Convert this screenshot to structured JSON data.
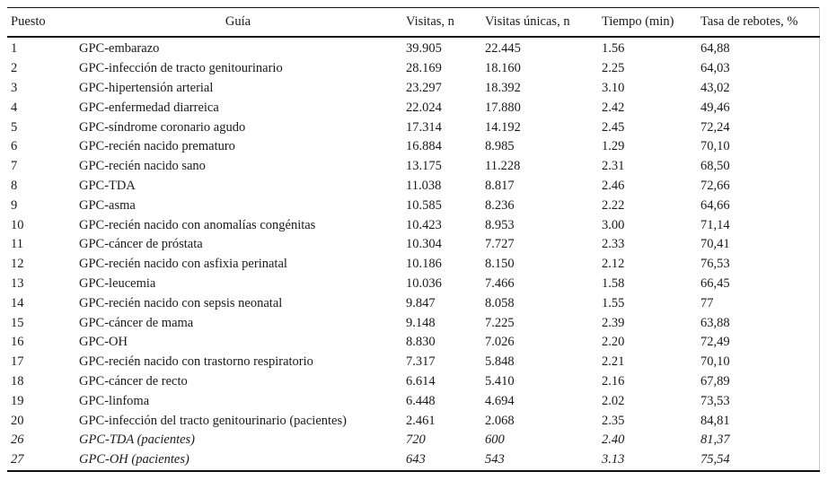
{
  "table": {
    "columns": [
      {
        "key": "puesto",
        "label": "Puesto"
      },
      {
        "key": "guia",
        "label": "Guía"
      },
      {
        "key": "visitas",
        "label": "Visitas, n"
      },
      {
        "key": "unicas",
        "label": "Visitas únicas, n"
      },
      {
        "key": "tiempo",
        "label": "Tiempo (min)"
      },
      {
        "key": "tasa",
        "label": "Tasa de rebotes, %"
      }
    ],
    "rows": [
      {
        "puesto": "1",
        "guia": "GPC-embarazo",
        "visitas": "39.905",
        "unicas": "22.445",
        "tiempo": "1.56",
        "tasa": "64,88",
        "italic": false
      },
      {
        "puesto": "2",
        "guia": "GPC-infección de tracto genitourinario",
        "visitas": "28.169",
        "unicas": "18.160",
        "tiempo": "2.25",
        "tasa": "64,03",
        "italic": false
      },
      {
        "puesto": "3",
        "guia": "GPC-hipertensión arterial",
        "visitas": "23.297",
        "unicas": "18.392",
        "tiempo": "3.10",
        "tasa": "43,02",
        "italic": false
      },
      {
        "puesto": "4",
        "guia": "GPC-enfermedad diarreica",
        "visitas": "22.024",
        "unicas": "17.880",
        "tiempo": "2.42",
        "tasa": "49,46",
        "italic": false
      },
      {
        "puesto": "5",
        "guia": "GPC-síndrome coronario agudo",
        "visitas": "17.314",
        "unicas": "14.192",
        "tiempo": "2.45",
        "tasa": "72,24",
        "italic": false
      },
      {
        "puesto": "6",
        "guia": "GPC-recién nacido prematuro",
        "visitas": "16.884",
        "unicas": "8.985",
        "tiempo": "1.29",
        "tasa": "70,10",
        "italic": false
      },
      {
        "puesto": "7",
        "guia": "GPC-recién nacido sano",
        "visitas": "13.175",
        "unicas": "11.228",
        "tiempo": "2.31",
        "tasa": "68,50",
        "italic": false
      },
      {
        "puesto": "8",
        "guia": "GPC-TDA",
        "visitas": "11.038",
        "unicas": "8.817",
        "tiempo": "2.46",
        "tasa": "72,66",
        "italic": false
      },
      {
        "puesto": "9",
        "guia": "GPC-asma",
        "visitas": "10.585",
        "unicas": "8.236",
        "tiempo": "2.22",
        "tasa": "64,66",
        "italic": false
      },
      {
        "puesto": "10",
        "guia": "GPC-recién nacido con anomalías congénitas",
        "visitas": "10.423",
        "unicas": "8.953",
        "tiempo": "3.00",
        "tasa": "71,14",
        "italic": false
      },
      {
        "puesto": "11",
        "guia": "GPC-cáncer de próstata",
        "visitas": "10.304",
        "unicas": "7.727",
        "tiempo": "2.33",
        "tasa": "70,41",
        "italic": false
      },
      {
        "puesto": "12",
        "guia": "GPC-recién nacido con asfixia perinatal",
        "visitas": "10.186",
        "unicas": "8.150",
        "tiempo": "2.12",
        "tasa": "76,53",
        "italic": false
      },
      {
        "puesto": "13",
        "guia": "GPC-leucemia",
        "visitas": "10.036",
        "unicas": "7.466",
        "tiempo": "1.58",
        "tasa": "66,45",
        "italic": false
      },
      {
        "puesto": "14",
        "guia": "GPC-recién nacido con sepsis neonatal",
        "visitas": "9.847",
        "unicas": "8.058",
        "tiempo": "1.55",
        "tasa": "77",
        "italic": false
      },
      {
        "puesto": "15",
        "guia": "GPC-cáncer de mama",
        "visitas": "9.148",
        "unicas": "7.225",
        "tiempo": "2.39",
        "tasa": "63,88",
        "italic": false
      },
      {
        "puesto": "16",
        "guia": "GPC-OH",
        "visitas": "8.830",
        "unicas": "7.026",
        "tiempo": "2.20",
        "tasa": "72,49",
        "italic": false
      },
      {
        "puesto": "17",
        "guia": "GPC-recién nacido con trastorno respiratorio",
        "visitas": "7.317",
        "unicas": "5.848",
        "tiempo": "2.21",
        "tasa": "70,10",
        "italic": false
      },
      {
        "puesto": "18",
        "guia": "GPC-cáncer de recto",
        "visitas": "6.614",
        "unicas": "5.410",
        "tiempo": "2.16",
        "tasa": "67,89",
        "italic": false
      },
      {
        "puesto": "19",
        "guia": "GPC-linfoma",
        "visitas": "6.448",
        "unicas": "4.694",
        "tiempo": "2.02",
        "tasa": "73,53",
        "italic": false
      },
      {
        "puesto": "20",
        "guia": "GPC-infección del tracto genitourinario (pacientes)",
        "visitas": "2.461",
        "unicas": "2.068",
        "tiempo": "2.35",
        "tasa": "84,81",
        "italic": false
      },
      {
        "puesto": "26",
        "guia": "GPC-TDA (pacientes)",
        "visitas": "720",
        "unicas": "600",
        "tiempo": "2.40",
        "tasa": "81,37",
        "italic": true
      },
      {
        "puesto": "27",
        "guia": "GPC-OH (pacientes)",
        "visitas": "643",
        "unicas": "543",
        "tiempo": "3.13",
        "tasa": "75,54",
        "italic": true
      }
    ]
  }
}
